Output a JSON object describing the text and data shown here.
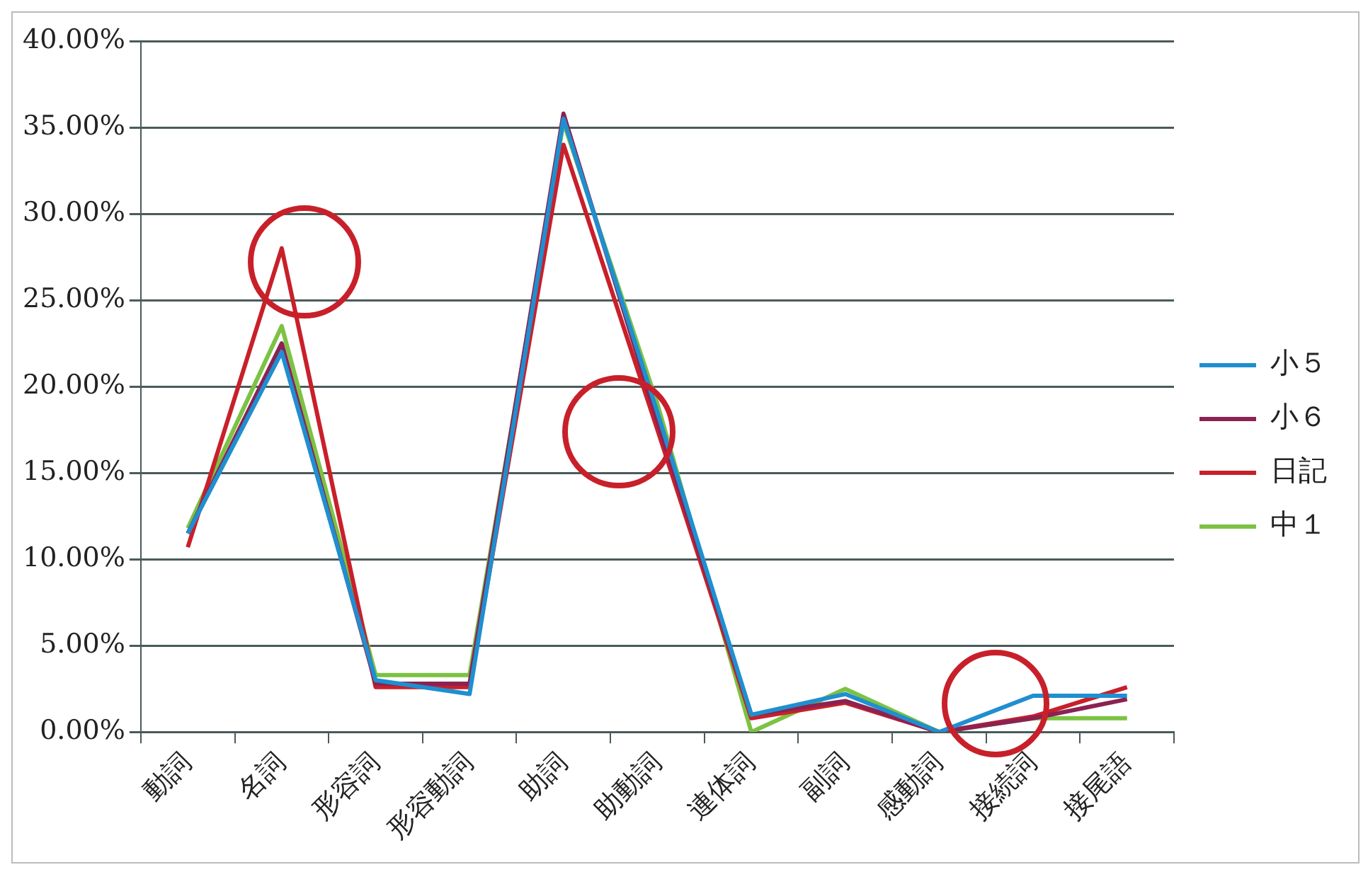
{
  "chart_data": {
    "type": "line",
    "categories": [
      "動詞",
      "名詞",
      "形容詞",
      "形容動詞",
      "助詞",
      "助動詞",
      "連体詞",
      "副詞",
      "感動詞",
      "接続詞",
      "接尾語"
    ],
    "series": [
      {
        "name": "小５",
        "color": "#1f8fd0",
        "values": [
          11.5,
          22.0,
          3.0,
          2.2,
          35.5,
          18.5,
          1.0,
          2.2,
          0,
          2.1,
          2.1
        ]
      },
      {
        "name": "小６",
        "color": "#8b2252",
        "values": [
          11.5,
          22.5,
          2.8,
          2.8,
          35.8,
          18.0,
          1.0,
          1.8,
          0,
          0.8,
          1.9
        ]
      },
      {
        "name": "日記",
        "color": "#c8202a",
        "values": [
          10.7,
          28.0,
          2.6,
          2.6,
          34.0,
          17.5,
          0.8,
          1.7,
          0,
          0.9,
          2.6
        ]
      },
      {
        "name": "中１",
        "color": "#7cc243",
        "values": [
          11.8,
          23.5,
          3.3,
          3.3,
          35.3,
          19.0,
          0.0,
          2.5,
          0,
          0.8,
          0.8
        ]
      }
    ],
    "ylim": [
      0,
      40
    ],
    "yticks": [
      {
        "value": 0,
        "label": "0.00%"
      },
      {
        "value": 5,
        "label": "5.00%"
      },
      {
        "value": 10,
        "label": "10.00%"
      },
      {
        "value": 15,
        "label": "15.00%"
      },
      {
        "value": 20,
        "label": "20.00%"
      },
      {
        "value": 25,
        "label": "25.00%"
      },
      {
        "value": 30,
        "label": "30.00%"
      },
      {
        "value": 35,
        "label": "35.00%"
      },
      {
        "value": 40,
        "label": "40.00%"
      }
    ],
    "grid": "y",
    "legend": "right",
    "marker": "none",
    "line_style": "solid"
  }
}
